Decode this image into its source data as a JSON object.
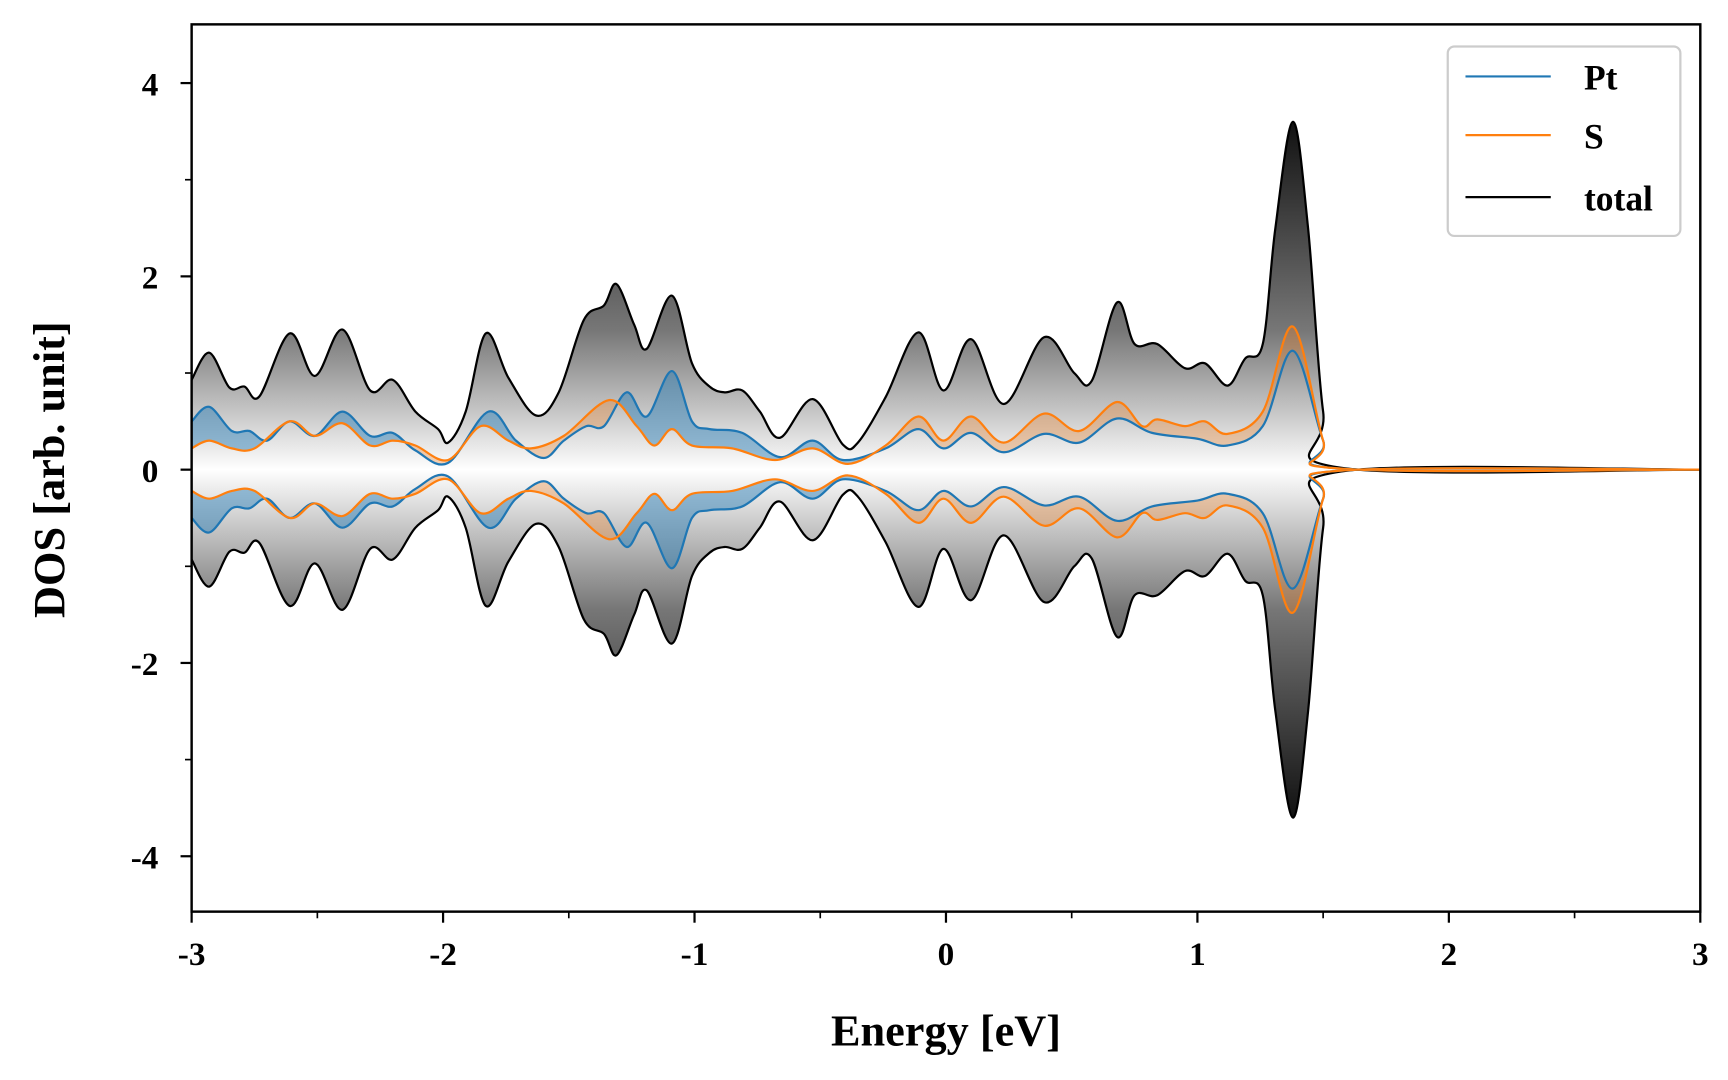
{
  "chart_data": {
    "type": "line",
    "title": "",
    "xlabel": "Energy [eV]",
    "ylabel": "DOS [arb. unit]",
    "xlim": [
      -3,
      3
    ],
    "ylim": [
      -4.6,
      4.6
    ],
    "xticks": [
      -3,
      -2,
      -1,
      0,
      1,
      2,
      3
    ],
    "xtick_labels": [
      "-3",
      "-2",
      "-1",
      "0",
      "1",
      "2",
      "3"
    ],
    "yticks": [
      -4,
      -2,
      0,
      2,
      4
    ],
    "ytick_labels": [
      "-4",
      "-2",
      "0",
      "2",
      "4"
    ],
    "grid": false,
    "legend_position": "top-right",
    "mirrored_negative": true,
    "series": [
      {
        "name": "Pt",
        "color": "#1f77b4",
        "x": [
          -3,
          -2.93,
          -2.84,
          -2.77,
          -2.7,
          -2.61,
          -2.51,
          -2.4,
          -2.29,
          -2.2,
          -2.11,
          -1.98,
          -1.82,
          -1.71,
          -1.6,
          -1.52,
          -1.43,
          -1.36,
          -1.27,
          -1.19,
          -1.09,
          -1.01,
          -0.94,
          -0.81,
          -0.66,
          -0.53,
          -0.41,
          -0.24,
          -0.11,
          -0.01,
          0.1,
          0.23,
          0.39,
          0.53,
          0.68,
          0.82,
          1.0,
          1.12,
          1.26,
          1.38,
          1.5,
          1.57,
          3
        ],
        "y": [
          0.5,
          0.65,
          0.4,
          0.4,
          0.3,
          0.5,
          0.35,
          0.6,
          0.35,
          0.38,
          0.2,
          0.07,
          0.6,
          0.3,
          0.12,
          0.3,
          0.45,
          0.45,
          0.8,
          0.55,
          1.02,
          0.5,
          0.42,
          0.38,
          0.13,
          0.3,
          0.1,
          0.22,
          0.42,
          0.22,
          0.38,
          0.18,
          0.37,
          0.28,
          0.53,
          0.38,
          0.32,
          0.25,
          0.45,
          1.23,
          0.3,
          0.01,
          0
        ]
      },
      {
        "name": "S",
        "color": "#ff7f0e",
        "x": [
          -3,
          -2.93,
          -2.84,
          -2.75,
          -2.61,
          -2.51,
          -2.4,
          -2.29,
          -2.2,
          -2.11,
          -1.98,
          -1.85,
          -1.74,
          -1.65,
          -1.52,
          -1.34,
          -1.23,
          -1.16,
          -1.09,
          -1.01,
          -0.85,
          -0.68,
          -0.53,
          -0.39,
          -0.24,
          -0.11,
          -0.01,
          0.1,
          0.23,
          0.39,
          0.53,
          0.68,
          0.78,
          0.84,
          0.95,
          1.03,
          1.12,
          1.26,
          1.38,
          1.5,
          1.57,
          3
        ],
        "y": [
          0.22,
          0.3,
          0.22,
          0.22,
          0.5,
          0.35,
          0.48,
          0.25,
          0.3,
          0.25,
          0.1,
          0.45,
          0.3,
          0.22,
          0.35,
          0.72,
          0.45,
          0.25,
          0.42,
          0.25,
          0.22,
          0.1,
          0.22,
          0.06,
          0.25,
          0.55,
          0.3,
          0.55,
          0.28,
          0.58,
          0.4,
          0.7,
          0.45,
          0.52,
          0.45,
          0.5,
          0.37,
          0.6,
          1.48,
          0.3,
          0.01,
          0
        ]
      },
      {
        "name": "total",
        "color": "#000000",
        "x": [
          -3,
          -2.93,
          -2.85,
          -2.79,
          -2.73,
          -2.61,
          -2.51,
          -2.4,
          -2.29,
          -2.2,
          -2.11,
          -2.02,
          -1.98,
          -1.91,
          -1.83,
          -1.74,
          -1.63,
          -1.54,
          -1.44,
          -1.36,
          -1.31,
          -1.24,
          -1.19,
          -1.09,
          -1.01,
          -0.94,
          -0.88,
          -0.81,
          -0.74,
          -0.66,
          -0.53,
          -0.41,
          -0.35,
          -0.24,
          -0.11,
          -0.01,
          0.1,
          0.23,
          0.39,
          0.51,
          0.58,
          0.68,
          0.75,
          0.84,
          0.95,
          1.03,
          1.12,
          1.19,
          1.26,
          1.31,
          1.38,
          1.44,
          1.5,
          1.57,
          3
        ],
        "y": [
          0.93,
          1.21,
          0.85,
          0.86,
          0.76,
          1.41,
          0.97,
          1.45,
          0.82,
          0.93,
          0.6,
          0.42,
          0.28,
          0.6,
          1.41,
          0.95,
          0.56,
          0.8,
          1.55,
          1.7,
          1.92,
          1.5,
          1.25,
          1.8,
          1.1,
          0.86,
          0.8,
          0.82,
          0.6,
          0.33,
          0.73,
          0.26,
          0.28,
          0.75,
          1.42,
          0.82,
          1.35,
          0.68,
          1.37,
          1.0,
          0.92,
          1.73,
          1.3,
          1.3,
          1.05,
          1.1,
          0.87,
          1.15,
          1.3,
          2.5,
          3.6,
          2.5,
          0.6,
          0.02,
          0
        ]
      }
    ]
  }
}
